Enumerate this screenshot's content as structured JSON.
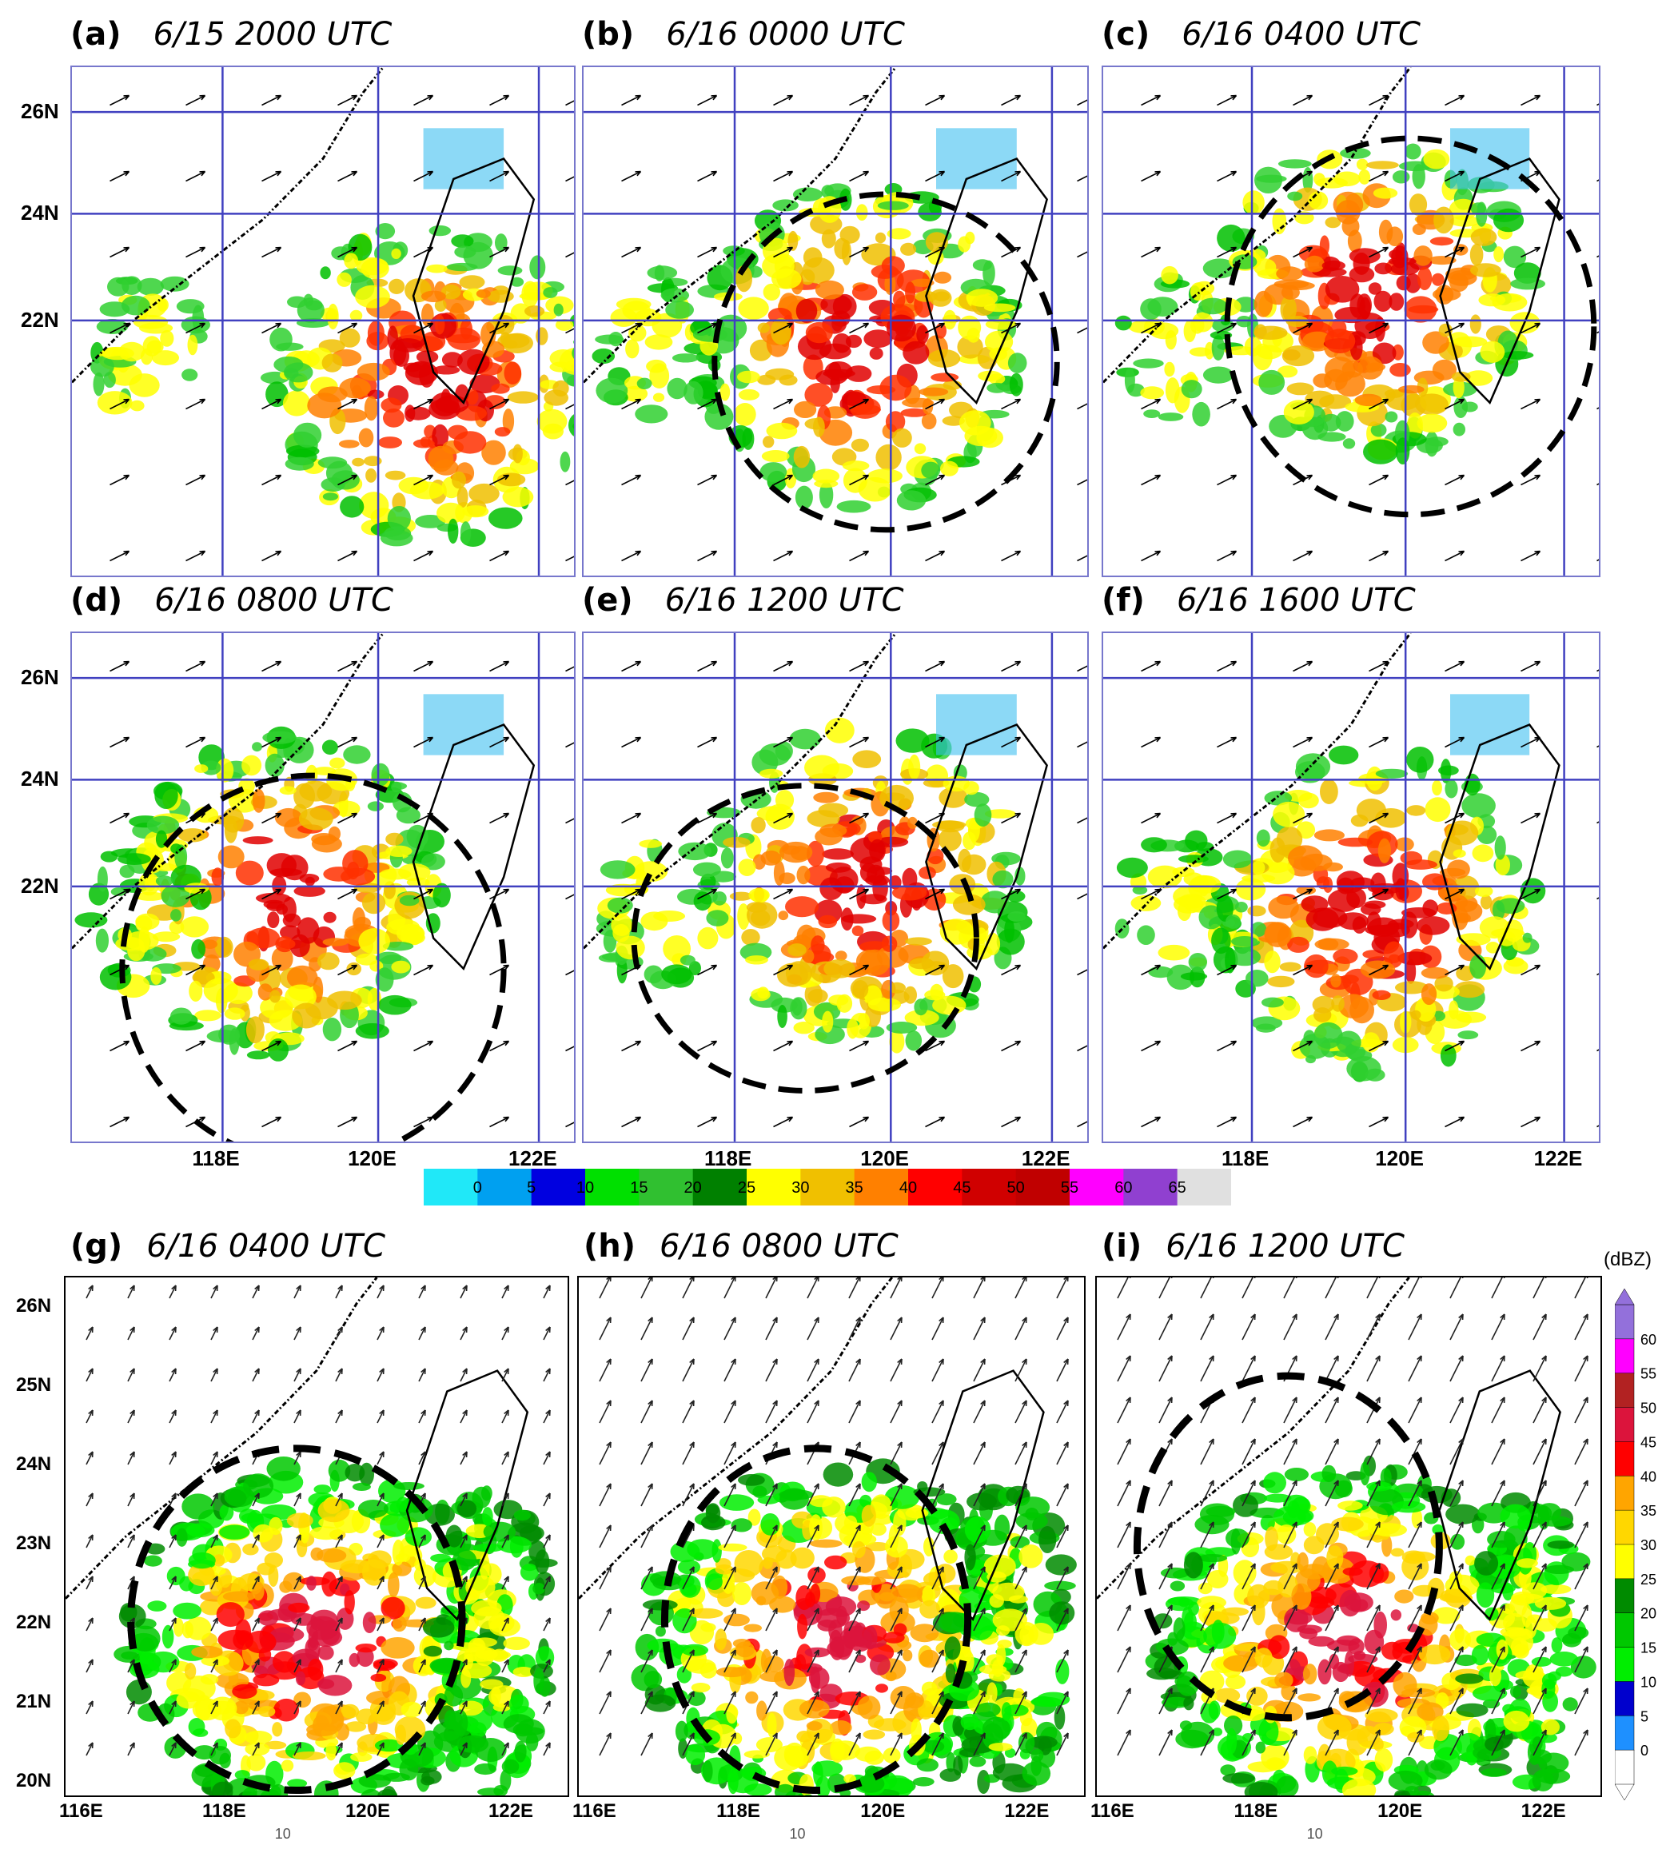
{
  "top_panels": [
    {
      "letter": "(a)",
      "time": "6/15 2000 UTC",
      "circle": false
    },
    {
      "letter": "(b)",
      "time": "6/16 0000 UTC",
      "circle": true
    },
    {
      "letter": "(c)",
      "time": "6/16 0400 UTC",
      "circle": true
    },
    {
      "letter": "(d)",
      "time": "6/16 0800 UTC",
      "circle": true
    },
    {
      "letter": "(e)",
      "time": "6/16 1200 UTC",
      "circle": true
    },
    {
      "letter": "(f)",
      "time": "6/16 1600 UTC",
      "circle": false
    }
  ],
  "bottom_panels": [
    {
      "letter": "(g)",
      "time": "6/16 0400 UTC"
    },
    {
      "letter": "(h)",
      "time": "6/16 0800 UTC"
    },
    {
      "letter": "(i)",
      "time": "6/16 1200 UTC"
    }
  ],
  "top_lat_ticks": [
    "26N",
    "24N",
    "22N"
  ],
  "top_lon_ticks": [
    "118E",
    "120E",
    "122E"
  ],
  "bottom_lat_ticks": [
    "26N",
    "25N",
    "24N",
    "23N",
    "22N",
    "21N",
    "20N"
  ],
  "bottom_lon_ticks": [
    "116E",
    "118E",
    "120E",
    "122E"
  ],
  "top_colorbar": {
    "labels": [
      "0",
      "5",
      "10",
      "15",
      "20",
      "25",
      "30",
      "35",
      "40",
      "45",
      "50",
      "55",
      "60",
      "65"
    ],
    "colors": [
      "#20e8f8",
      "#00a0f0",
      "#0000e0",
      "#00e000",
      "#30c030",
      "#008000",
      "#ffff00",
      "#f0c000",
      "#ff8000",
      "#ff0000",
      "#d00000",
      "#c00000",
      "#ff00ff",
      "#9040d0",
      "#e0e0e0"
    ]
  },
  "bottom_colorbar": {
    "unit": "(dBZ)",
    "labels": [
      "0",
      "5",
      "10",
      "15",
      "20",
      "25",
      "30",
      "35",
      "40",
      "45",
      "50",
      "55",
      "60"
    ],
    "colors": [
      "#ffffff",
      "#1e90ff",
      "#0000cd",
      "#00ee00",
      "#00c800",
      "#008b00",
      "#ffff00",
      "#ffd700",
      "#ffa500",
      "#ff0000",
      "#dc143c",
      "#b22222",
      "#ff00ff",
      "#9370db"
    ]
  },
  "vector_reference": "10"
}
